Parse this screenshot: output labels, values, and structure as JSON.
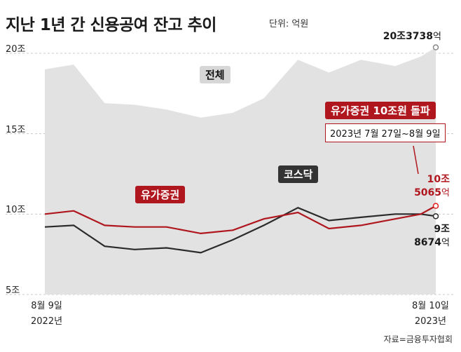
{
  "title": "지난 1년 간 신용공여 잔고 추이",
  "unit": "단위: 억원",
  "source": "자료=금융투자협회",
  "colors": {
    "total_fill": "#e2e2e2",
    "securities": "#b0161e",
    "kosdaq": "#2b2b2b",
    "marker": "#e02020"
  },
  "labels": {
    "total": "전체",
    "securities": "유가증권",
    "kosdaq": "코스닥",
    "callout_title": "유가증권 10조원 돌파",
    "callout_sub": "2023년 7월 27일~8월 9일"
  },
  "end_values": {
    "total_line1": "20조3738",
    "total_unit": "억",
    "sec_line1": "10조",
    "sec_line2": "5065",
    "sec_unit": "억",
    "kosdaq_line1": "9조",
    "kosdaq_line2": "8674",
    "kosdaq_unit": "억"
  },
  "x_axis": {
    "start_line1": "8월 9일",
    "start_line2": "2022년",
    "end_line1": "8월 10일",
    "end_line2": "2023년"
  },
  "chart_data": {
    "type": "area",
    "ylim": [
      5,
      20
    ],
    "yticks": [
      "20조",
      "15조",
      "10조",
      "5조"
    ],
    "ytick_values": [
      20,
      15,
      10,
      5
    ],
    "x": [
      "2022-08-09",
      "2022-09-05",
      "2022-10-04",
      "2022-11-01",
      "2022-12-01",
      "2023-01-02",
      "2023-02-01",
      "2023-03-02",
      "2023-04-03",
      "2023-05-02",
      "2023-06-01",
      "2023-07-03",
      "2023-07-27",
      "2023-08-10"
    ],
    "series": [
      {
        "name": "전체",
        "values": [
          19.0,
          19.3,
          16.9,
          16.8,
          16.5,
          16.0,
          16.3,
          17.2,
          19.6,
          18.8,
          19.6,
          19.2,
          19.8,
          20.37
        ]
      },
      {
        "name": "유가증권",
        "values": [
          10.0,
          10.2,
          9.3,
          9.2,
          9.2,
          8.8,
          9.0,
          9.7,
          10.1,
          9.1,
          9.3,
          9.7,
          10.0,
          10.51
        ]
      },
      {
        "name": "코스닥",
        "values": [
          9.2,
          9.3,
          8.0,
          7.8,
          7.9,
          7.6,
          8.4,
          9.3,
          10.4,
          9.6,
          9.8,
          10.0,
          10.0,
          9.87
        ]
      }
    ]
  }
}
